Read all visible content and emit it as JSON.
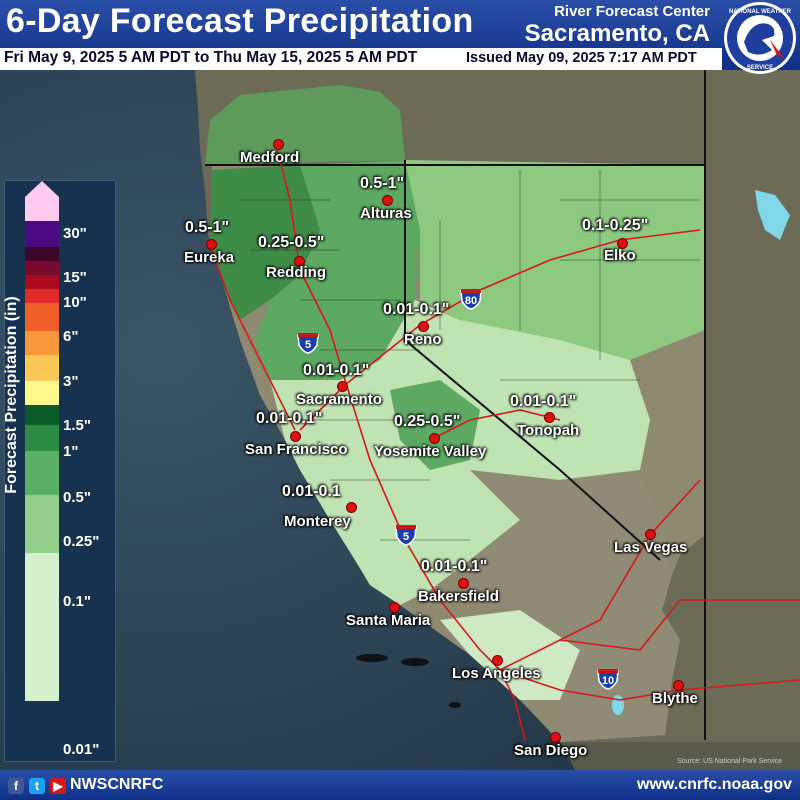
{
  "header": {
    "title": "6-Day Forecast Precipitation",
    "org_line1": "River Forecast Center",
    "org_line2": "Sacramento, CA",
    "valid_range": "Fri May 9, 2025 5 AM PDT to Thu May 15, 2025 5 AM PDT",
    "issued": "Issued May 09, 2025 7:17 AM PDT",
    "logo_text": "NATIONAL WEATHER SERVICE"
  },
  "legend": {
    "title": "Forecast Precipitation (in)",
    "ticks": [
      "30\"",
      "15\"",
      "10\"",
      "6\"",
      "3\"",
      "1.5\"",
      "1\"",
      "0.5\"",
      "0.25\"",
      "0.1\"",
      "0.01\""
    ],
    "colors": [
      "#ffcaf0",
      "#4b0a82",
      "#3c0628",
      "#780a2d",
      "#aa0a1e",
      "#e02a28",
      "#f05f2a",
      "#f7973b",
      "#fbc858",
      "#fff98d",
      "#0b5e2c",
      "#2d8c44",
      "#5bb065",
      "#93cf8a",
      "#d6efcd"
    ]
  },
  "cities": [
    {
      "name": "Medford"
    },
    {
      "name": "Alturas"
    },
    {
      "name": "Eureka"
    },
    {
      "name": "Redding"
    },
    {
      "name": "Elko"
    },
    {
      "name": "Reno"
    },
    {
      "name": "Sacramento"
    },
    {
      "name": "San Francisco"
    },
    {
      "name": "Tonopah"
    },
    {
      "name": "Yosemite Valley"
    },
    {
      "name": "Monterey"
    },
    {
      "name": "Las Vegas"
    },
    {
      "name": "Bakersfield"
    },
    {
      "name": "Santa Maria"
    },
    {
      "name": "Los Angeles"
    },
    {
      "name": "Blythe"
    },
    {
      "name": "San Diego"
    }
  ],
  "amounts": [
    {
      "value": "0.5-1\""
    },
    {
      "value": "0.5-1\""
    },
    {
      "value": "0.25-0.5\""
    },
    {
      "value": "0.1-0.25\""
    },
    {
      "value": "0.01-0.1\""
    },
    {
      "value": "0.01-0.1\""
    },
    {
      "value": "0.01-0.1\""
    },
    {
      "value": "0.01-0.1\""
    },
    {
      "value": "0.25-0.5\""
    },
    {
      "value": "0.01-0.1"
    },
    {
      "value": "0.01-0.1\""
    }
  ],
  "highways": [
    "5",
    "80",
    "5",
    "10"
  ],
  "map_credit": "Source: US National Park Service",
  "footer": {
    "handle": "NWSCNRFC",
    "website": "www.cnrfc.noaa.gov",
    "social_icons": [
      "facebook-icon",
      "twitter-icon",
      "youtube-icon"
    ]
  },
  "colors": {
    "ocean": "#2f4a5c",
    "land": "#6a6a5a",
    "header_blue": "#1a3d98"
  }
}
